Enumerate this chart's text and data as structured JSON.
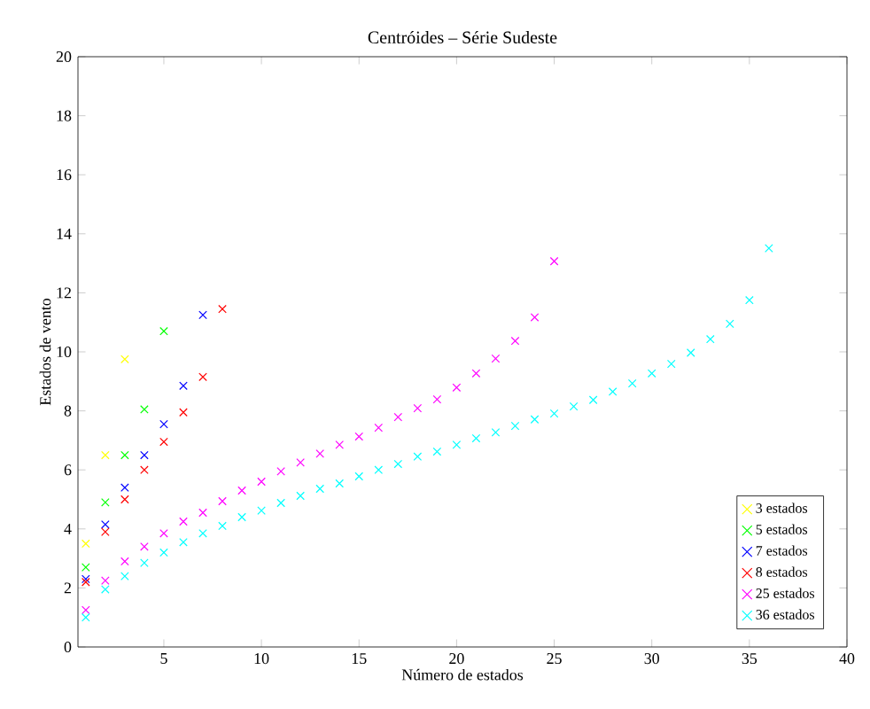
{
  "chart_data": {
    "type": "scatter",
    "title": "Centróides – Série Sudeste",
    "xlabel": "Número de estados",
    "ylabel": "Estados de vento",
    "xlim": [
      0.6,
      40
    ],
    "ylim": [
      0,
      20
    ],
    "xticks": [
      5,
      10,
      15,
      20,
      25,
      30,
      35,
      40
    ],
    "yticks": [
      0,
      2,
      4,
      6,
      8,
      10,
      12,
      14,
      16,
      18,
      20
    ],
    "marker": "cross",
    "legend": "bottom right",
    "grid": false,
    "series": [
      {
        "name": "3 estados",
        "color": "#ffff00",
        "x": [
          1,
          2,
          3
        ],
        "values": [
          3.5,
          6.5,
          9.75
        ]
      },
      {
        "name": "5 estados",
        "color": "#00ff00",
        "x": [
          1,
          2,
          3,
          4,
          5
        ],
        "values": [
          2.7,
          4.9,
          6.5,
          8.05,
          10.7
        ]
      },
      {
        "name": "7 estados",
        "color": "#0000ff",
        "x": [
          1,
          2,
          3,
          4,
          5,
          6,
          7
        ],
        "values": [
          2.3,
          4.15,
          5.4,
          6.5,
          7.55,
          8.85,
          11.25
        ]
      },
      {
        "name": "8 estados",
        "color": "#ff0000",
        "x": [
          1,
          2,
          3,
          4,
          5,
          6,
          7,
          8
        ],
        "values": [
          2.2,
          3.9,
          5.0,
          6.0,
          6.95,
          7.95,
          9.15,
          11.45
        ]
      },
      {
        "name": "25 estados",
        "color": "#ff00ff",
        "x": [
          1,
          2,
          3,
          4,
          5,
          6,
          7,
          8,
          9,
          10,
          11,
          12,
          13,
          14,
          15,
          16,
          17,
          18,
          19,
          20,
          21,
          22,
          23,
          24,
          25
        ],
        "values": [
          1.25,
          2.25,
          2.9,
          3.4,
          3.85,
          4.25,
          4.55,
          4.94,
          5.3,
          5.6,
          5.95,
          6.25,
          6.55,
          6.85,
          7.13,
          7.43,
          7.79,
          8.09,
          8.39,
          8.79,
          9.27,
          9.77,
          10.37,
          11.17,
          13.07
        ]
      },
      {
        "name": "36 estados",
        "color": "#00ffff",
        "x": [
          1,
          2,
          3,
          4,
          5,
          6,
          7,
          8,
          9,
          10,
          11,
          12,
          13,
          14,
          15,
          16,
          17,
          18,
          19,
          20,
          21,
          22,
          23,
          24,
          25,
          26,
          27,
          28,
          29,
          30,
          31,
          32,
          33,
          34,
          35,
          36
        ],
        "values": [
          1.0,
          1.95,
          2.4,
          2.85,
          3.2,
          3.55,
          3.85,
          4.1,
          4.4,
          4.62,
          4.88,
          5.12,
          5.36,
          5.54,
          5.78,
          6.0,
          6.2,
          6.45,
          6.62,
          6.85,
          7.07,
          7.27,
          7.49,
          7.71,
          7.91,
          8.15,
          8.37,
          8.65,
          8.93,
          9.27,
          9.59,
          9.97,
          10.43,
          10.95,
          11.75,
          13.51
        ]
      }
    ]
  }
}
